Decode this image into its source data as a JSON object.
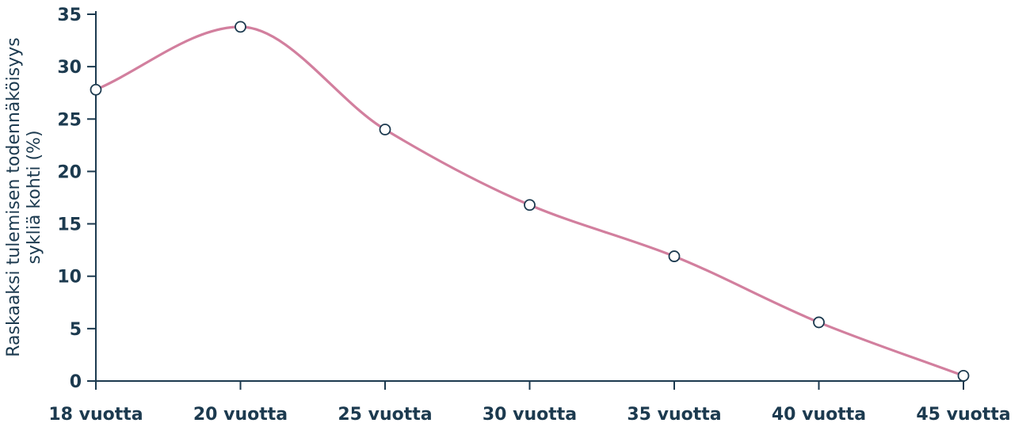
{
  "colors": {
    "axis": "#1c3a4f",
    "line": "#d27f9e",
    "marker": "#1c3a4f"
  },
  "chart_data": {
    "type": "line",
    "title": "",
    "xlabel": "",
    "ylabel_lines": [
      "Raskaaksi tulemisen todennäköisyys",
      "sykliä kohti (%)"
    ],
    "categories": [
      "18 vuotta",
      "20 vuotta",
      "25 vuotta",
      "30 vuotta",
      "35 vuotta",
      "40 vuotta",
      "45 vuotta"
    ],
    "values": [
      27.8,
      33.8,
      24,
      16.8,
      11.9,
      5.6,
      0.5
    ],
    "yticks": [
      0,
      5,
      10,
      15,
      20,
      25,
      30,
      35
    ],
    "ylim": [
      0,
      35
    ],
    "grid": false,
    "legend": "none",
    "smooth": true
  }
}
